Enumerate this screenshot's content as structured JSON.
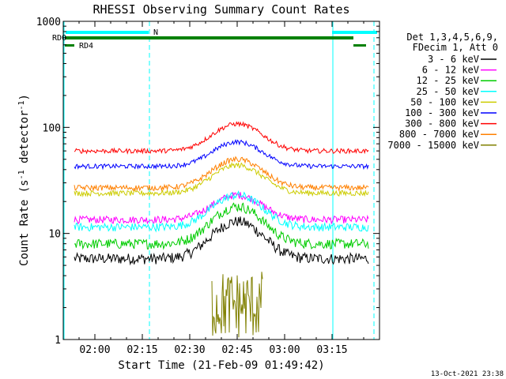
{
  "chart_data": {
    "type": "line",
    "title": "RHESSI Observing Summary Count Rates",
    "xlabel": "Start Time (21-Feb-09 01:49:42)",
    "ylabel_main": "Count Rate (s",
    "ylabel_sup1": "-1",
    "ylabel_mid": " detector",
    "ylabel_sup2": "-1",
    "ylabel_end": ")",
    "yscale": "log",
    "ylim": [
      1,
      1000
    ],
    "xlim_minutes_after_0150": [
      0,
      100
    ],
    "x_ticks": [
      {
        "label": "02:00",
        "min": 10
      },
      {
        "label": "02:15",
        "min": 25
      },
      {
        "label": "02:30",
        "min": 40
      },
      {
        "label": "02:45",
        "min": 55
      },
      {
        "label": "03:00",
        "min": 70
      },
      {
        "label": "03:15",
        "min": 85
      }
    ],
    "y_ticks": [
      {
        "label": "1",
        "value": 1
      },
      {
        "label": "10",
        "value": 10
      },
      {
        "label": "100",
        "value": 100
      },
      {
        "label": "1000",
        "value": 1000
      }
    ],
    "legend_header": [
      "Det 1,3,4,5,6,9,",
      "FDecim 1, Att 0"
    ],
    "series": [
      {
        "name": "3 - 6 keV",
        "color": "#000000",
        "base": 5.8,
        "peak": 13
      },
      {
        "name": "6 - 12 keV",
        "color": "#ff00ff",
        "base": 13.5,
        "peak": 23
      },
      {
        "name": "12 - 25 keV",
        "color": "#00cc00",
        "base": 8,
        "peak": 18
      },
      {
        "name": "25 - 50 keV",
        "color": "#00ffff",
        "base": 11.5,
        "peak": 23
      },
      {
        "name": "50 - 100 keV",
        "color": "#cccc00",
        "base": 24,
        "peak": 44
      },
      {
        "name": "100 - 300 keV",
        "color": "#0000ff",
        "base": 43,
        "peak": 73
      },
      {
        "name": "300 - 800 keV",
        "color": "#ff0000",
        "base": 60,
        "peak": 108
      },
      {
        "name": "800 - 7000 keV",
        "color": "#ff8000",
        "base": 27,
        "peak": 50
      },
      {
        "name": "7000 - 15000 keV",
        "color": "#808000",
        "base": 1,
        "peak": 4.5
      }
    ],
    "status_bars": [
      {
        "label": "N",
        "color": "#00ffff"
      },
      {
        "label": "RDO",
        "color": "#008000"
      },
      {
        "label": "RD4",
        "color": "#008000"
      }
    ],
    "timestamp": "13-Oct-2021 23:38"
  }
}
